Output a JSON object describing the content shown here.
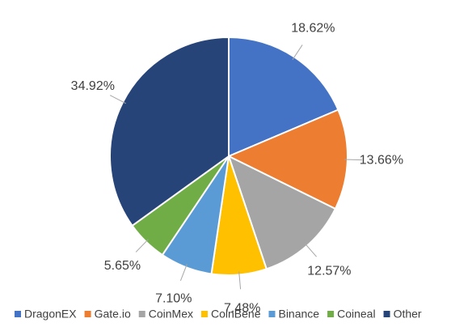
{
  "chart_data": {
    "type": "pie",
    "categories": [
      "DragonEX",
      "Gate.io",
      "CoinMex",
      "CoinBene",
      "Binance",
      "Coineal",
      "Other"
    ],
    "values": [
      18.62,
      13.66,
      12.57,
      7.48,
      7.1,
      5.65,
      34.92
    ],
    "value_labels": [
      "18.62%",
      "13.66%",
      "12.57%",
      "7.48%",
      "7.10%",
      "5.65%",
      "34.92%"
    ],
    "colors": [
      "#4472c4",
      "#ed7d31",
      "#a5a5a5",
      "#ffc000",
      "#5b9bd5",
      "#70ad47",
      "#264478"
    ],
    "legend": "bottom"
  }
}
